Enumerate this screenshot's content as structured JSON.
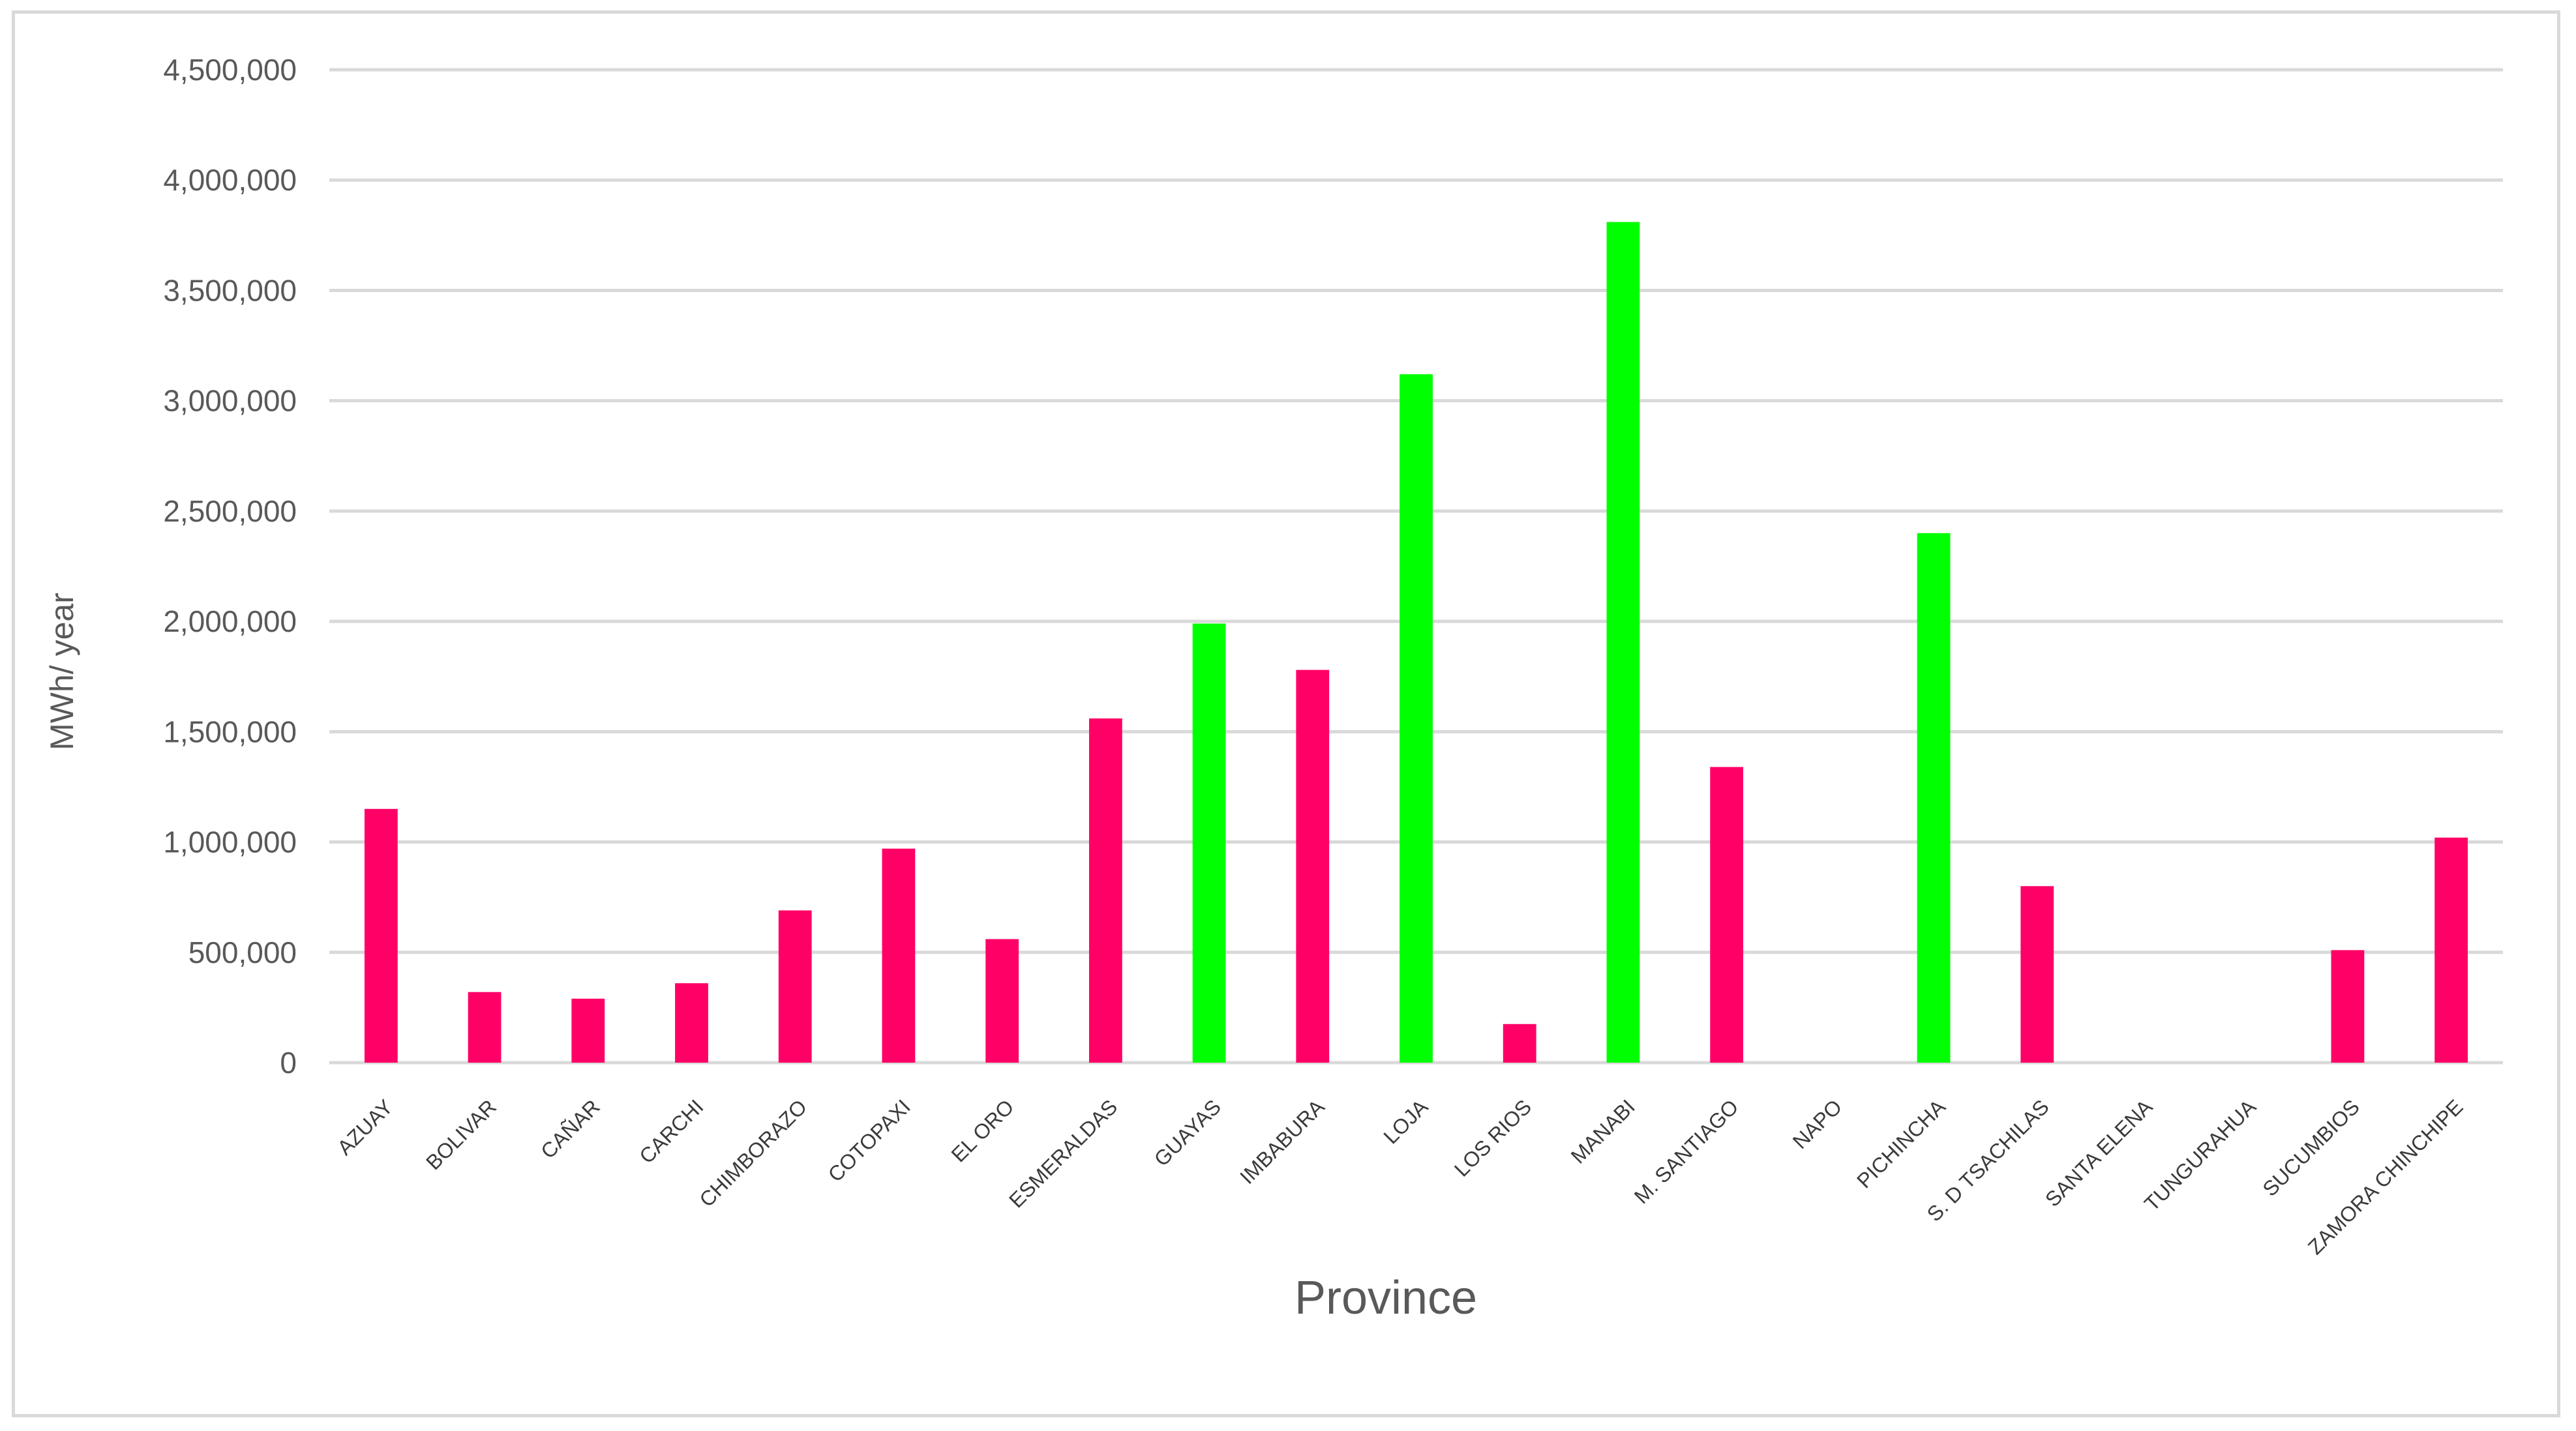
{
  "chart_data": {
    "type": "bar",
    "title": "",
    "xlabel": "Province",
    "ylabel": "MWh/ year",
    "ylim": [
      0,
      4500000
    ],
    "ytick_step": 500000,
    "yticks": [
      "0",
      "500,000",
      "1,000,000",
      "1,500,000",
      "2,000,000",
      "2,500,000",
      "3,000,000",
      "3,500,000",
      "4,000,000",
      "4,500,000"
    ],
    "grid": true,
    "legend": "none",
    "colors": {
      "default": "#ff0066",
      "highlight": "#00ff00",
      "grid": "#d9d9d9",
      "axis_text": "#595959"
    },
    "categories": [
      "AZUAY",
      "BOLIVAR",
      "CAÑAR",
      "CARCHI",
      "CHIMBORAZO",
      "COTOPAXI",
      "EL ORO",
      "ESMERALDAS",
      "GUAYAS",
      "IMBABURA",
      "LOJA",
      "LOS RIOS",
      "MANABI",
      "M. SANTIAGO",
      "NAPO",
      "PICHINCHA",
      "S. D TSACHILAS",
      "SANTA ELENA",
      "TUNGURAHUA",
      "SUCUMBIOS",
      "ZAMORA CHINCHIPE"
    ],
    "values": [
      1150000,
      320000,
      290000,
      360000,
      690000,
      970000,
      560000,
      1560000,
      1990000,
      1780000,
      3120000,
      175000,
      3810000,
      1340000,
      0,
      2400000,
      800000,
      0,
      0,
      510000,
      1020000
    ],
    "highlighted": [
      false,
      false,
      false,
      false,
      false,
      false,
      false,
      false,
      true,
      false,
      true,
      false,
      true,
      false,
      false,
      true,
      false,
      false,
      false,
      false,
      false
    ]
  }
}
